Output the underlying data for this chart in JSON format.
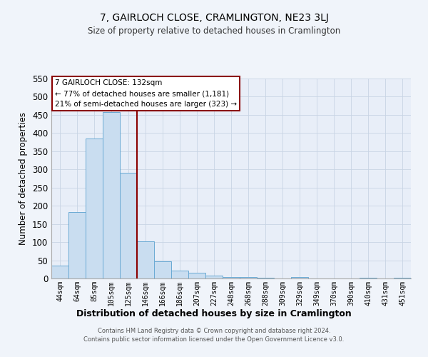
{
  "title": "7, GAIRLOCH CLOSE, CRAMLINGTON, NE23 3LJ",
  "subtitle": "Size of property relative to detached houses in Cramlington",
  "xlabel": "Distribution of detached houses by size in Cramlington",
  "ylabel": "Number of detached properties",
  "bar_labels": [
    "44sqm",
    "64sqm",
    "85sqm",
    "105sqm",
    "125sqm",
    "146sqm",
    "166sqm",
    "186sqm",
    "207sqm",
    "227sqm",
    "248sqm",
    "268sqm",
    "288sqm",
    "309sqm",
    "329sqm",
    "349sqm",
    "370sqm",
    "390sqm",
    "410sqm",
    "431sqm",
    "451sqm"
  ],
  "bar_values": [
    35,
    182,
    385,
    457,
    290,
    103,
    48,
    21,
    16,
    8,
    4,
    3,
    1,
    0,
    3,
    0,
    0,
    0,
    2,
    0,
    2
  ],
  "bar_color": "#c9ddf0",
  "bar_edge_color": "#6aaad4",
  "vline_x": 4.5,
  "vline_color": "#8b0000",
  "ylim": [
    0,
    550
  ],
  "yticks": [
    0,
    50,
    100,
    150,
    200,
    250,
    300,
    350,
    400,
    450,
    500,
    550
  ],
  "annotation_title": "7 GAIRLOCH CLOSE: 132sqm",
  "annotation_line1": "← 77% of detached houses are smaller (1,181)",
  "annotation_line2": "21% of semi-detached houses are larger (323) →",
  "annotation_box_color": "#ffffff",
  "annotation_box_edge_color": "#8b0000",
  "grid_color": "#c8d4e4",
  "background_color": "#e8eef8",
  "fig_background_color": "#f0f4fa",
  "footer_line1": "Contains HM Land Registry data © Crown copyright and database right 2024.",
  "footer_line2": "Contains public sector information licensed under the Open Government Licence v3.0."
}
